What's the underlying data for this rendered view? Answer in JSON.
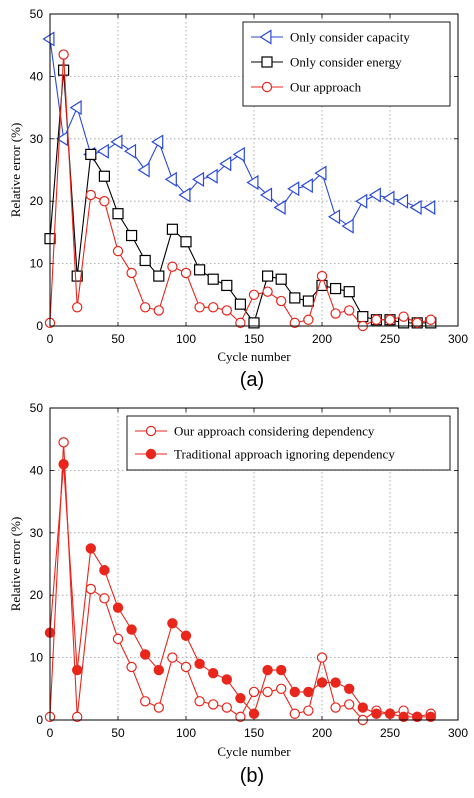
{
  "chart_data": [
    {
      "type": "line",
      "caption": "(a)",
      "xlabel": "Cycle number",
      "ylabel": "Relative error (%)",
      "xlim": [
        0,
        300
      ],
      "ylim": [
        0,
        50
      ],
      "xticks": [
        "0",
        "50",
        "100",
        "150",
        "200",
        "250",
        "300"
      ],
      "yticks": [
        "0",
        "10",
        "20",
        "30",
        "40",
        "50"
      ],
      "grid": true,
      "legend_position": "top-right",
      "series": [
        {
          "name": "Only consider capacity",
          "color": "#2a4ad8",
          "marker": "triangle-left",
          "filled": false,
          "x": [
            0,
            10,
            20,
            30,
            40,
            50,
            60,
            70,
            80,
            90,
            100,
            110,
            120,
            130,
            140,
            150,
            160,
            170,
            180,
            190,
            200,
            210,
            220,
            230,
            240,
            250,
            260,
            270,
            280
          ],
          "y": [
            46,
            30,
            35,
            27.5,
            28,
            29.5,
            28,
            25,
            29.5,
            23.5,
            21,
            23.5,
            24,
            26,
            27.5,
            23,
            21,
            19,
            22,
            22.5,
            24.5,
            17.5,
            16,
            20,
            21,
            20.5,
            20,
            19,
            19
          ]
        },
        {
          "name": "Only consider energy",
          "color": "#000000",
          "marker": "square",
          "filled": false,
          "x": [
            0,
            10,
            20,
            30,
            40,
            50,
            60,
            70,
            80,
            90,
            100,
            110,
            120,
            130,
            140,
            150,
            160,
            170,
            180,
            190,
            200,
            210,
            220,
            230,
            240,
            250,
            260,
            270,
            280
          ],
          "y": [
            14,
            41,
            8,
            27.5,
            24,
            18,
            14.5,
            10.5,
            8,
            15.5,
            13.5,
            9,
            7.5,
            6.5,
            3.5,
            0.5,
            8,
            7.5,
            4.5,
            4,
            6.5,
            6,
            5.5,
            1.5,
            1,
            1,
            0.5,
            0.5,
            0.5
          ]
        },
        {
          "name": "Our approach",
          "color": "#e8261c",
          "marker": "circle",
          "filled": false,
          "x": [
            0,
            10,
            20,
            30,
            40,
            50,
            60,
            70,
            80,
            90,
            100,
            110,
            120,
            130,
            140,
            150,
            160,
            170,
            180,
            190,
            200,
            210,
            220,
            230,
            240,
            250,
            260,
            270,
            280
          ],
          "y": [
            0.5,
            43.5,
            3,
            21,
            20,
            12,
            8.5,
            3,
            2.5,
            9.5,
            8.5,
            3,
            3,
            2.5,
            0.5,
            5,
            5.5,
            4,
            0.5,
            1,
            8,
            2,
            2.5,
            0,
            1,
            1,
            1.5,
            0.5,
            1
          ]
        }
      ]
    },
    {
      "type": "line",
      "caption": "(b)",
      "xlabel": "Cycle number",
      "ylabel": "Relative error (%)",
      "xlim": [
        0,
        300
      ],
      "ylim": [
        0,
        50
      ],
      "xticks": [
        "0",
        "50",
        "100",
        "150",
        "200",
        "250",
        "300"
      ],
      "yticks": [
        "0",
        "10",
        "20",
        "30",
        "40",
        "50"
      ],
      "grid": true,
      "legend_position": "top-right",
      "series": [
        {
          "name": "Our approach considering dependency",
          "color": "#e8261c",
          "marker": "circle",
          "filled": false,
          "x": [
            0,
            10,
            20,
            30,
            40,
            50,
            60,
            70,
            80,
            90,
            100,
            110,
            120,
            130,
            140,
            150,
            160,
            170,
            180,
            190,
            200,
            210,
            220,
            230,
            240,
            250,
            260,
            270,
            280
          ],
          "y": [
            0.5,
            44.5,
            0.5,
            21,
            19.5,
            13,
            8.5,
            3,
            2,
            10,
            8.5,
            3,
            2.5,
            2,
            0.5,
            4.5,
            4.5,
            5,
            1,
            1.5,
            10,
            2,
            2.5,
            0,
            1.5,
            1,
            1.5,
            0.5,
            1
          ]
        },
        {
          "name": "Traditional approach ignoring dependency",
          "color": "#e8261c",
          "marker": "circle",
          "filled": true,
          "x": [
            0,
            10,
            20,
            30,
            40,
            50,
            60,
            70,
            80,
            90,
            100,
            110,
            120,
            130,
            140,
            150,
            160,
            170,
            180,
            190,
            200,
            210,
            220,
            230,
            240,
            250,
            260,
            270,
            280
          ],
          "y": [
            14,
            41,
            8,
            27.5,
            24,
            18,
            14.5,
            10.5,
            8,
            15.5,
            13.5,
            9,
            7.5,
            6.5,
            3.5,
            1,
            8,
            8,
            4.5,
            4.5,
            6,
            6,
            5,
            2,
            1,
            1,
            0.5,
            0.5,
            0.5
          ]
        }
      ]
    }
  ]
}
